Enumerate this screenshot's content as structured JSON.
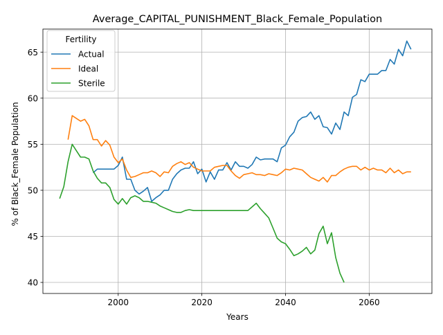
{
  "chart_data": {
    "type": "line",
    "title": "Average_CAPITAL_PUNISHMENT_Black_Female_Population",
    "xlabel": "Years",
    "ylabel": "% of Black_Female Population",
    "xlim": [
      1982,
      2075
    ],
    "ylim": [
      38.8,
      67.5
    ],
    "xticks": [
      2000,
      2020,
      2040,
      2060
    ],
    "yticks": [
      40,
      45,
      50,
      55,
      60,
      65
    ],
    "grid": true,
    "legend": {
      "title": "Fertility",
      "placement": "top-left"
    },
    "series": [
      {
        "name": "Actual",
        "color": "#1f77b4",
        "x": [
          1994,
          1995,
          1996,
          1997,
          1998,
          1999,
          2000,
          2001,
          2002,
          2003,
          2004,
          2005,
          2006,
          2007,
          2008,
          2009,
          2010,
          2011,
          2012,
          2013,
          2014,
          2015,
          2016,
          2017,
          2018,
          2019,
          2020,
          2021,
          2022,
          2023,
          2024,
          2025,
          2026,
          2027,
          2028,
          2029,
          2030,
          2031,
          2032,
          2033,
          2034,
          2035,
          2036,
          2037,
          2038,
          2039,
          2040,
          2041,
          2042,
          2043,
          2044,
          2045,
          2046,
          2047,
          2048,
          2049,
          2050,
          2051,
          2052,
          2053,
          2054,
          2055,
          2056,
          2057,
          2058,
          2059,
          2060,
          2061,
          2062,
          2063,
          2064,
          2065,
          2066,
          2067,
          2068,
          2069,
          2070
        ],
        "y": [
          51.9,
          52.3,
          52.3,
          52.3,
          52.3,
          52.3,
          52.7,
          53.6,
          51.2,
          51.2,
          50.0,
          49.6,
          49.9,
          50.3,
          48.8,
          49.2,
          49.5,
          50.0,
          50.0,
          51.2,
          51.8,
          52.2,
          52.4,
          52.4,
          53.1,
          51.8,
          52.3,
          50.9,
          52.0,
          51.2,
          52.2,
          52.2,
          53.0,
          52.2,
          53.1,
          52.6,
          52.6,
          52.4,
          52.8,
          53.6,
          53.3,
          53.4,
          53.4,
          53.4,
          53.1,
          54.6,
          54.9,
          55.8,
          56.3,
          57.5,
          57.9,
          58.0,
          58.5,
          57.7,
          58.1,
          56.9,
          56.8,
          56.1,
          57.3,
          56.6,
          58.5,
          58.1,
          60.1,
          60.4,
          62.0,
          61.8,
          62.6,
          62.6,
          62.6,
          63.0,
          63.0,
          64.2,
          63.7,
          65.3,
          64.6,
          66.2,
          65.3
        ]
      },
      {
        "name": "Ideal",
        "color": "#ff7f0e",
        "x": [
          1988,
          1989,
          1990,
          1991,
          1992,
          1993,
          1994,
          1995,
          1996,
          1997,
          1998,
          1999,
          2000,
          2001,
          2002,
          2003,
          2004,
          2005,
          2006,
          2007,
          2008,
          2009,
          2010,
          2011,
          2012,
          2013,
          2014,
          2015,
          2016,
          2017,
          2018,
          2019,
          2020,
          2021,
          2022,
          2023,
          2024,
          2025,
          2026,
          2027,
          2028,
          2029,
          2030,
          2031,
          2032,
          2033,
          2034,
          2035,
          2036,
          2037,
          2038,
          2039,
          2040,
          2041,
          2042,
          2043,
          2044,
          2045,
          2046,
          2047,
          2048,
          2049,
          2050,
          2051,
          2052,
          2053,
          2054,
          2055,
          2056,
          2057,
          2058,
          2059,
          2060,
          2061,
          2062,
          2063,
          2064,
          2065,
          2066,
          2067,
          2068,
          2069,
          2070
        ],
        "y": [
          55.5,
          58.1,
          57.8,
          57.5,
          57.7,
          57.0,
          55.5,
          55.5,
          54.8,
          55.4,
          54.9,
          53.6,
          53.0,
          53.4,
          52.2,
          51.4,
          51.5,
          51.7,
          51.9,
          51.9,
          52.1,
          51.9,
          51.5,
          52.0,
          51.9,
          52.6,
          52.9,
          53.1,
          52.8,
          53.0,
          52.5,
          52.3,
          52.1,
          52.1,
          52.1,
          52.5,
          52.6,
          52.7,
          52.7,
          52.1,
          51.6,
          51.3,
          51.7,
          51.8,
          51.9,
          51.7,
          51.7,
          51.6,
          51.8,
          51.7,
          51.6,
          51.9,
          52.3,
          52.2,
          52.4,
          52.3,
          52.2,
          51.8,
          51.4,
          51.2,
          51.0,
          51.4,
          50.9,
          51.6,
          51.6,
          52.0,
          52.3,
          52.5,
          52.6,
          52.6,
          52.2,
          52.5,
          52.2,
          52.4,
          52.2,
          52.2,
          51.9,
          52.4,
          51.9,
          52.2,
          51.8,
          52.0,
          52.0
        ]
      },
      {
        "name": "Sterile",
        "color": "#2ca02c",
        "x": [
          1986,
          1987,
          1988,
          1989,
          1990,
          1991,
          1992,
          1993,
          1994,
          1995,
          1996,
          1997,
          1998,
          1999,
          2000,
          2001,
          2002,
          2003,
          2004,
          2005,
          2006,
          2007,
          2008,
          2009,
          2010,
          2011,
          2012,
          2013,
          2014,
          2015,
          2016,
          2017,
          2018,
          2019,
          2020,
          2021,
          2022,
          2023,
          2024,
          2025,
          2026,
          2027,
          2028,
          2029,
          2030,
          2031,
          2032,
          2033,
          2034,
          2035,
          2036,
          2037,
          2038,
          2039,
          2040,
          2041,
          2042,
          2043,
          2044,
          2045,
          2046,
          2047,
          2048,
          2049,
          2050,
          2051,
          2052,
          2053,
          2054
        ],
        "y": [
          49.1,
          50.4,
          53.1,
          55.0,
          54.3,
          53.6,
          53.6,
          53.4,
          52.1,
          51.3,
          50.8,
          50.8,
          50.3,
          49.0,
          48.5,
          49.1,
          48.5,
          49.2,
          49.4,
          49.2,
          48.8,
          48.8,
          48.7,
          48.6,
          48.3,
          48.1,
          47.9,
          47.7,
          47.6,
          47.6,
          47.8,
          47.9,
          47.8,
          47.8,
          47.8,
          47.8,
          47.8,
          47.8,
          47.8,
          47.8,
          47.8,
          47.8,
          47.8,
          47.8,
          47.8,
          47.8,
          48.2,
          48.6,
          48.0,
          47.5,
          47.0,
          45.9,
          44.8,
          44.4,
          44.2,
          43.6,
          42.9,
          43.1,
          43.4,
          43.8,
          43.1,
          43.5,
          45.3,
          46.1,
          44.2,
          45.4,
          42.7,
          41.0,
          40.0
        ]
      }
    ]
  }
}
